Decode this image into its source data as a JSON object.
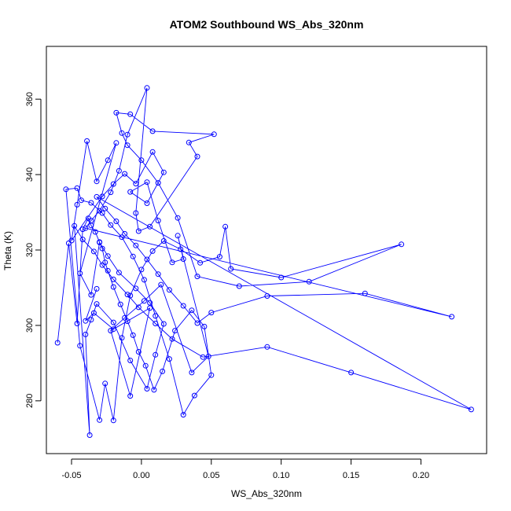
{
  "chart_data": {
    "type": "scatter",
    "title": "ATOM2 Southbound WS_Abs_320nm",
    "xlabel": "WS_Abs_320nm",
    "ylabel": "Theta (K)",
    "xlim": [
      -0.068,
      0.247
    ],
    "ylim": [
      266.0,
      374.0
    ],
    "x_ticks": [
      -0.05,
      0.0,
      0.05,
      0.1,
      0.15,
      0.2
    ],
    "x_tick_labels": [
      "-0.05",
      "0.00",
      "0.05",
      "0.10",
      "0.15",
      "0.20"
    ],
    "y_ticks": [
      280,
      300,
      320,
      340,
      360
    ],
    "y_tick_labels": [
      "280",
      "300",
      "320",
      "340",
      "360"
    ],
    "grid": false,
    "series": [
      {
        "color": "#0000ff",
        "marker": "open-circle",
        "connected": true,
        "points": [
          [
            -0.06,
            295.4
          ],
          [
            -0.052,
            321.8
          ],
          [
            -0.046,
            300.5
          ],
          [
            -0.042,
            325.5
          ],
          [
            -0.038,
            328.4
          ],
          [
            -0.036,
            326.5
          ],
          [
            -0.033,
            324.8
          ],
          [
            -0.03,
            322.1
          ],
          [
            -0.028,
            320.4
          ],
          [
            -0.026,
            316.7
          ],
          [
            -0.024,
            314.5
          ],
          [
            -0.02,
            310.2
          ],
          [
            -0.015,
            305.6
          ],
          [
            -0.01,
            301.1
          ],
          [
            -0.006,
            297.4
          ],
          [
            -0.002,
            293.0
          ],
          [
            0.003,
            289.3
          ],
          [
            0.009,
            282.9
          ],
          [
            0.015,
            287.8
          ],
          [
            0.024,
            298.6
          ],
          [
            0.036,
            304.0
          ],
          [
            0.045,
            299.7
          ],
          [
            0.05,
            286.8
          ],
          [
            0.038,
            281.4
          ],
          [
            0.03,
            276.3
          ],
          [
            0.02,
            291.1
          ],
          [
            0.01,
            302.5
          ],
          [
            0.002,
            312.1
          ],
          [
            -0.006,
            318.3
          ],
          [
            -0.014,
            323.4
          ],
          [
            -0.022,
            326.6
          ],
          [
            -0.028,
            329.8
          ],
          [
            -0.036,
            332.5
          ],
          [
            -0.043,
            333.2
          ],
          [
            -0.046,
            336.4
          ],
          [
            -0.054,
            336.1
          ],
          [
            -0.044,
            294.6
          ],
          [
            -0.03,
            274.9
          ],
          [
            -0.026,
            284.6
          ],
          [
            -0.02,
            274.8
          ],
          [
            -0.014,
            296.7
          ],
          [
            -0.008,
            307.9
          ],
          [
            0.0,
            314.8
          ],
          [
            0.008,
            319.7
          ],
          [
            0.016,
            322.4
          ],
          [
            0.028,
            320.2
          ],
          [
            0.042,
            316.6
          ],
          [
            0.056,
            318.2
          ],
          [
            0.06,
            326.2
          ],
          [
            0.064,
            315.0
          ],
          [
            0.1,
            312.7
          ],
          [
            0.186,
            321.5
          ],
          [
            0.12,
            311.6
          ],
          [
            0.07,
            310.4
          ],
          [
            0.04,
            313.0
          ],
          [
            0.026,
            328.5
          ],
          [
            0.012,
            337.8
          ],
          [
            0.0,
            343.8
          ],
          [
            -0.01,
            347.8
          ],
          [
            -0.014,
            351.0
          ],
          [
            -0.018,
            356.4
          ],
          [
            -0.008,
            356.0
          ],
          [
            0.008,
            351.5
          ],
          [
            0.052,
            350.7
          ],
          [
            0.034,
            348.5
          ],
          [
            0.04,
            344.8
          ],
          [
            0.006,
            326.2
          ],
          [
            -0.002,
            325.0
          ],
          [
            -0.004,
            329.8
          ],
          [
            0.004,
            363.0
          ],
          [
            -0.01,
            350.6
          ],
          [
            -0.016,
            341.0
          ],
          [
            -0.022,
            335.3
          ],
          [
            -0.03,
            330.4
          ],
          [
            -0.036,
            327.8
          ],
          [
            -0.04,
            325.8
          ],
          [
            0.222,
            302.3
          ],
          [
            0.16,
            308.5
          ],
          [
            0.09,
            307.8
          ],
          [
            0.05,
            303.4
          ],
          [
            0.04,
            300.6
          ],
          [
            0.03,
            305.2
          ],
          [
            0.02,
            309.4
          ],
          [
            0.012,
            313.6
          ],
          [
            0.004,
            317.5
          ],
          [
            -0.004,
            321.2
          ],
          [
            -0.012,
            324.3
          ],
          [
            -0.018,
            327.6
          ],
          [
            -0.026,
            331.0
          ],
          [
            -0.032,
            334.1
          ],
          [
            0.236,
            277.7
          ],
          [
            0.15,
            287.5
          ],
          [
            0.09,
            294.3
          ],
          [
            0.044,
            291.6
          ],
          [
            0.022,
            296.4
          ],
          [
            0.01,
            300.5
          ],
          [
            -0.002,
            304.8
          ],
          [
            -0.01,
            308.2
          ],
          [
            -0.02,
            312.2
          ],
          [
            -0.028,
            316.0
          ],
          [
            -0.034,
            319.6
          ],
          [
            -0.042,
            322.8
          ],
          [
            -0.048,
            326.4
          ],
          [
            -0.037,
            270.9
          ],
          [
            -0.04,
            297.6
          ],
          [
            -0.036,
            301.5
          ],
          [
            -0.032,
            305.7
          ],
          [
            -0.02,
            300.8
          ],
          [
            -0.008,
            290.7
          ],
          [
            0.004,
            283.2
          ],
          [
            0.01,
            292.2
          ],
          [
            0.016,
            300.4
          ],
          [
            0.006,
            306.0
          ],
          [
            -0.004,
            309.8
          ],
          [
            -0.016,
            314.0
          ],
          [
            -0.024,
            318.4
          ],
          [
            -0.03,
            322.0
          ],
          [
            -0.036,
            308.1
          ],
          [
            -0.044,
            313.8
          ],
          [
            -0.018,
            348.4
          ],
          [
            -0.024,
            343.8
          ],
          [
            -0.032,
            338.2
          ],
          [
            -0.039,
            348.9
          ],
          [
            -0.046,
            332.0
          ],
          [
            -0.05,
            322.5
          ],
          [
            -0.028,
            334.2
          ],
          [
            -0.02,
            337.5
          ],
          [
            -0.012,
            340.2
          ],
          [
            -0.004,
            337.6
          ],
          [
            0.008,
            346.0
          ],
          [
            0.016,
            340.6
          ],
          [
            0.004,
            332.4
          ],
          [
            -0.008,
            335.4
          ],
          [
            0.004,
            338.0
          ],
          [
            0.012,
            327.8
          ],
          [
            0.022,
            316.7
          ],
          [
            0.03,
            317.6
          ],
          [
            0.026,
            323.8
          ],
          [
            0.048,
            291.8
          ],
          [
            0.036,
            287.5
          ],
          [
            0.014,
            310.8
          ],
          [
            0.002,
            306.5
          ],
          [
            -0.012,
            302.0
          ],
          [
            -0.022,
            298.6
          ],
          [
            -0.008,
            281.3
          ],
          [
            0.006,
            304.6
          ],
          [
            -0.02,
            299.0
          ],
          [
            -0.034,
            303.3
          ],
          [
            -0.04,
            301.2
          ],
          [
            -0.032,
            309.7
          ]
        ]
      }
    ]
  }
}
